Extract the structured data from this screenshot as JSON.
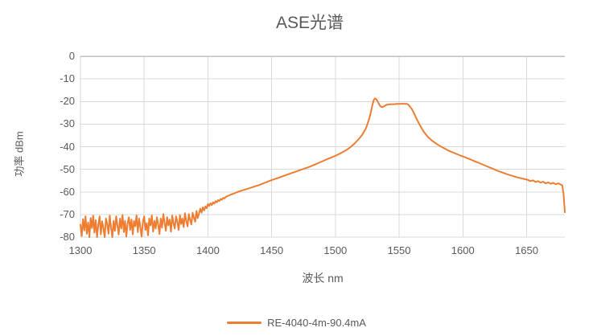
{
  "chart_data": {
    "type": "line",
    "title": "ASE光谱",
    "xlabel": "波长 nm",
    "ylabel": "功率 dBm",
    "xlim": [
      1300,
      1680
    ],
    "ylim": [
      -80,
      0
    ],
    "x_ticks": [
      1300,
      1350,
      1400,
      1450,
      1500,
      1550,
      1600,
      1650
    ],
    "y_ticks": [
      0,
      -10,
      -20,
      -30,
      -40,
      -50,
      -60,
      -70,
      -80
    ],
    "grid": true,
    "legend_position": "bottom-center",
    "colors": {
      "series": "#ED7D31",
      "text": "#595959",
      "grid": "#D9D9D9",
      "axis": "#BFBFBF",
      "background": "#FFFFFF"
    },
    "series": [
      {
        "name": "RE-4040-4m-90.4mA",
        "color": "#ED7D31",
        "points": [
          [
            1300,
            -74.5
          ],
          [
            1301,
            -79.5
          ],
          [
            1302,
            -72.0
          ],
          [
            1303,
            -77.0
          ],
          [
            1304,
            -70.8
          ],
          [
            1305,
            -78.5
          ],
          [
            1306,
            -73.5
          ],
          [
            1307,
            -80.0
          ],
          [
            1308,
            -71.5
          ],
          [
            1309,
            -76.0
          ],
          [
            1310,
            -70.5
          ],
          [
            1311,
            -78.0
          ],
          [
            1312,
            -72.5
          ],
          [
            1313,
            -80.0
          ],
          [
            1314,
            -74.5
          ],
          [
            1315,
            -70.8
          ],
          [
            1316,
            -78.8
          ],
          [
            1317,
            -73.0
          ],
          [
            1318,
            -76.0
          ],
          [
            1319,
            -80.0
          ],
          [
            1320,
            -71.8
          ],
          [
            1321,
            -74.2
          ],
          [
            1322,
            -78.5
          ],
          [
            1323,
            -70.5
          ],
          [
            1324,
            -75.8
          ],
          [
            1325,
            -80.0
          ],
          [
            1326,
            -72.8
          ],
          [
            1327,
            -77.2
          ],
          [
            1328,
            -70.8
          ],
          [
            1329,
            -74.8
          ],
          [
            1330,
            -78.8
          ],
          [
            1331,
            -71.8
          ],
          [
            1332,
            -76.2
          ],
          [
            1333,
            -70.2
          ],
          [
            1334,
            -77.8
          ],
          [
            1335,
            -72.8
          ],
          [
            1336,
            -79.8
          ],
          [
            1337,
            -73.8
          ],
          [
            1338,
            -71.2
          ],
          [
            1339,
            -76.8
          ],
          [
            1340,
            -72.2
          ],
          [
            1341,
            -78.8
          ],
          [
            1342,
            -72.8
          ],
          [
            1343,
            -75.2
          ],
          [
            1344,
            -70.4
          ],
          [
            1345,
            -77.8
          ],
          [
            1346,
            -71.8
          ],
          [
            1347,
            -75.8
          ],
          [
            1348,
            -79.8
          ],
          [
            1349,
            -73.2
          ],
          [
            1350,
            -70.8
          ],
          [
            1351,
            -76.8
          ],
          [
            1352,
            -73.8
          ],
          [
            1353,
            -79.2
          ],
          [
            1354,
            -71.8
          ],
          [
            1355,
            -74.8
          ],
          [
            1356,
            -70.4
          ],
          [
            1357,
            -77.6
          ],
          [
            1358,
            -72.8
          ],
          [
            1359,
            -76.2
          ],
          [
            1360,
            -71.2
          ],
          [
            1361,
            -74.4
          ],
          [
            1362,
            -78.6
          ],
          [
            1363,
            -71.8
          ],
          [
            1364,
            -75.8
          ],
          [
            1365,
            -69.8
          ],
          [
            1366,
            -73.8
          ],
          [
            1367,
            -77.2
          ],
          [
            1368,
            -71.2
          ],
          [
            1369,
            -74.8
          ],
          [
            1370,
            -72.2
          ],
          [
            1371,
            -77.6
          ],
          [
            1372,
            -70.4
          ],
          [
            1373,
            -73.8
          ],
          [
            1374,
            -76.2
          ],
          [
            1375,
            -70.8
          ],
          [
            1376,
            -73.2
          ],
          [
            1377,
            -76.8
          ],
          [
            1378,
            -70.2
          ],
          [
            1379,
            -74.2
          ],
          [
            1380,
            -71.8
          ],
          [
            1381,
            -75.6
          ],
          [
            1382,
            -69.4
          ],
          [
            1383,
            -72.8
          ],
          [
            1384,
            -75.2
          ],
          [
            1385,
            -69.8
          ],
          [
            1386,
            -72.2
          ],
          [
            1387,
            -74.4
          ],
          [
            1388,
            -69.2
          ],
          [
            1389,
            -71.4
          ],
          [
            1390,
            -73.2
          ],
          [
            1391,
            -68.4
          ],
          [
            1392,
            -71.6
          ],
          [
            1393,
            -69.6
          ],
          [
            1394,
            -67.4
          ],
          [
            1395,
            -69.2
          ],
          [
            1396,
            -66.8
          ],
          [
            1397,
            -68.2
          ],
          [
            1398,
            -66.4
          ],
          [
            1399,
            -67.2
          ],
          [
            1400,
            -65.4
          ],
          [
            1401,
            -66.2
          ],
          [
            1402,
            -65.0
          ],
          [
            1403,
            -65.8
          ],
          [
            1404,
            -64.6
          ],
          [
            1405,
            -65.2
          ],
          [
            1406,
            -64.1
          ],
          [
            1407,
            -64.6
          ],
          [
            1408,
            -63.6
          ],
          [
            1409,
            -64.0
          ],
          [
            1410,
            -63.1
          ],
          [
            1411,
            -63.5
          ],
          [
            1412,
            -62.6
          ],
          [
            1413,
            -62.9
          ],
          [
            1414,
            -62.2
          ],
          [
            1416,
            -61.7
          ],
          [
            1418,
            -61.2
          ],
          [
            1420,
            -60.8
          ],
          [
            1423,
            -60.1
          ],
          [
            1426,
            -59.5
          ],
          [
            1430,
            -58.8
          ],
          [
            1435,
            -57.9
          ],
          [
            1440,
            -57.0
          ],
          [
            1445,
            -55.9
          ],
          [
            1450,
            -54.8
          ],
          [
            1455,
            -53.8
          ],
          [
            1460,
            -52.8
          ],
          [
            1465,
            -51.8
          ],
          [
            1470,
            -50.8
          ],
          [
            1475,
            -49.8
          ],
          [
            1480,
            -48.8
          ],
          [
            1485,
            -47.6
          ],
          [
            1490,
            -46.4
          ],
          [
            1495,
            -45.2
          ],
          [
            1500,
            -44.0
          ],
          [
            1503,
            -43.2
          ],
          [
            1506,
            -42.3
          ],
          [
            1509,
            -41.3
          ],
          [
            1512,
            -40.1
          ],
          [
            1515,
            -38.6
          ],
          [
            1518,
            -36.8
          ],
          [
            1521,
            -34.8
          ],
          [
            1524,
            -31.8
          ],
          [
            1526,
            -28.6
          ],
          [
            1527,
            -26.6
          ],
          [
            1528,
            -24.2
          ],
          [
            1529,
            -21.6
          ],
          [
            1530,
            -19.5
          ],
          [
            1531,
            -18.6
          ],
          [
            1532,
            -18.9
          ],
          [
            1533,
            -19.8
          ],
          [
            1534,
            -20.9
          ],
          [
            1535,
            -21.9
          ],
          [
            1536,
            -22.4
          ],
          [
            1537,
            -22.5
          ],
          [
            1538,
            -22.2
          ],
          [
            1539,
            -21.8
          ],
          [
            1540,
            -21.5
          ],
          [
            1542,
            -21.3
          ],
          [
            1544,
            -21.2
          ],
          [
            1546,
            -21.2
          ],
          [
            1548,
            -21.1
          ],
          [
            1550,
            -21.1
          ],
          [
            1552,
            -21.0
          ],
          [
            1554,
            -21.0
          ],
          [
            1556,
            -21.1
          ],
          [
            1557,
            -21.3
          ],
          [
            1558,
            -21.9
          ],
          [
            1560,
            -23.4
          ],
          [
            1562,
            -25.6
          ],
          [
            1564,
            -28.0
          ],
          [
            1566,
            -30.2
          ],
          [
            1568,
            -32.2
          ],
          [
            1570,
            -33.9
          ],
          [
            1572,
            -35.3
          ],
          [
            1574,
            -36.4
          ],
          [
            1576,
            -37.4
          ],
          [
            1578,
            -38.2
          ],
          [
            1580,
            -39.0
          ],
          [
            1583,
            -40.0
          ],
          [
            1586,
            -40.9
          ],
          [
            1589,
            -41.8
          ],
          [
            1592,
            -42.5
          ],
          [
            1595,
            -43.2
          ],
          [
            1598,
            -43.9
          ],
          [
            1601,
            -44.5
          ],
          [
            1604,
            -45.2
          ],
          [
            1607,
            -45.9
          ],
          [
            1610,
            -46.6
          ],
          [
            1613,
            -47.3
          ],
          [
            1616,
            -48.0
          ],
          [
            1619,
            -48.7
          ],
          [
            1622,
            -49.4
          ],
          [
            1625,
            -50.1
          ],
          [
            1628,
            -50.8
          ],
          [
            1631,
            -51.4
          ],
          [
            1634,
            -52.0
          ],
          [
            1637,
            -52.6
          ],
          [
            1640,
            -53.1
          ],
          [
            1643,
            -53.6
          ],
          [
            1646,
            -54.0
          ],
          [
            1649,
            -54.4
          ],
          [
            1651,
            -54.7
          ],
          [
            1653,
            -55.2
          ],
          [
            1655,
            -54.9
          ],
          [
            1657,
            -55.6
          ],
          [
            1659,
            -55.2
          ],
          [
            1661,
            -55.9
          ],
          [
            1663,
            -55.5
          ],
          [
            1665,
            -56.2
          ],
          [
            1667,
            -55.8
          ],
          [
            1669,
            -56.4
          ],
          [
            1671,
            -56.0
          ],
          [
            1673,
            -56.6
          ],
          [
            1675,
            -56.2
          ],
          [
            1677,
            -56.8
          ],
          [
            1678,
            -57.1
          ],
          [
            1679,
            -61.0
          ],
          [
            1680,
            -69.0
          ]
        ]
      }
    ]
  }
}
